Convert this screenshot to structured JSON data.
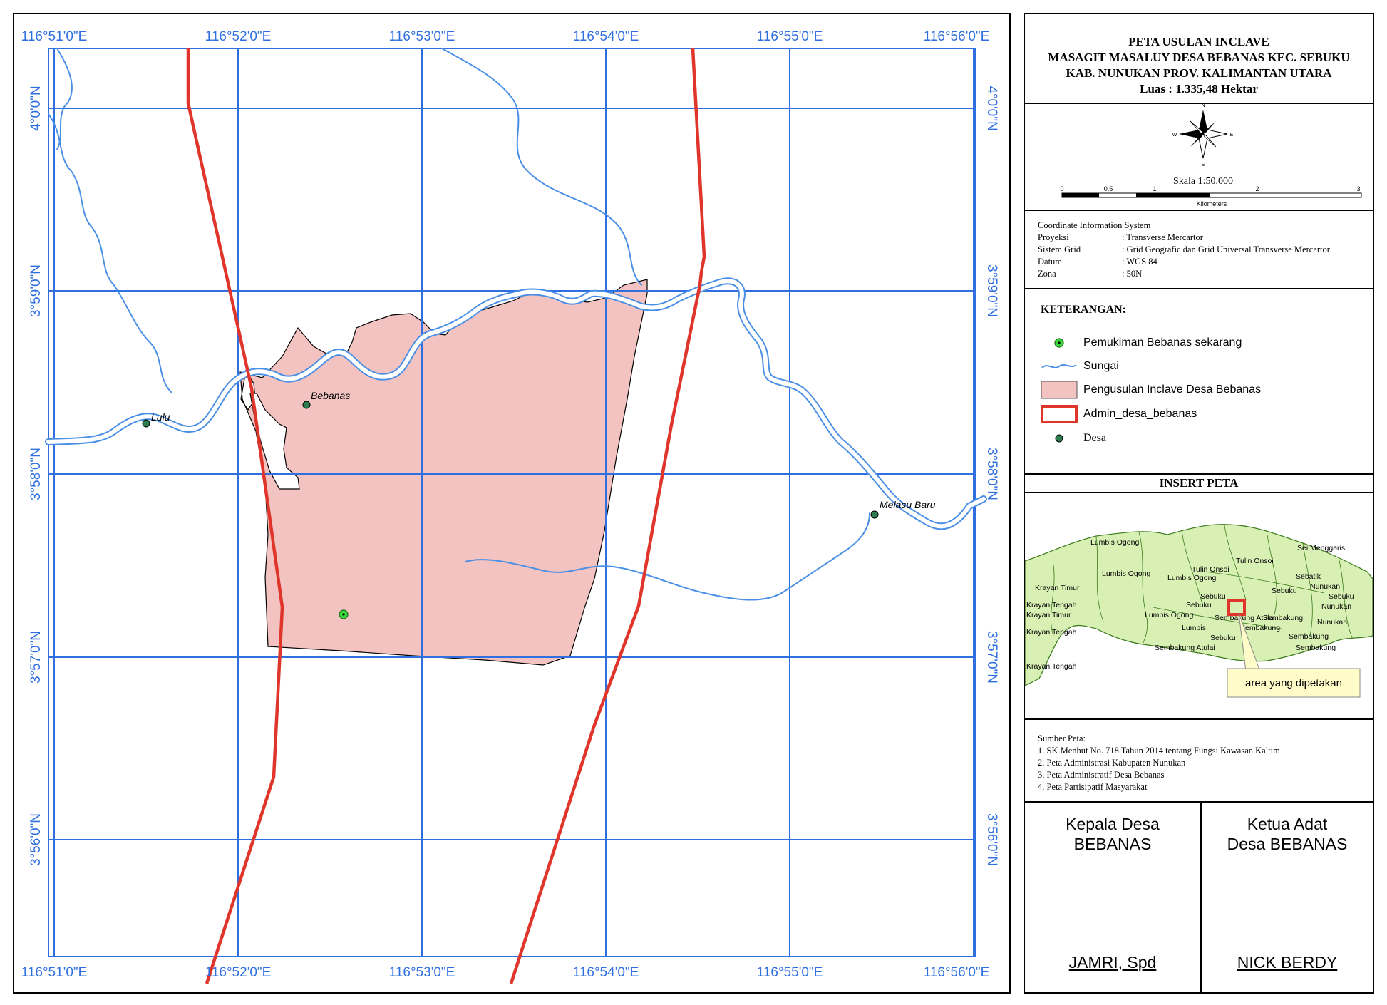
{
  "map": {
    "x_ticks": [
      "116°51'0\"E",
      "116°52'0\"E",
      "116°53'0\"E",
      "116°54'0\"E",
      "116°55'0\"E",
      "116°56'0\"E"
    ],
    "y_ticks": [
      "4°0'0\"N",
      "3°59'0\"N",
      "3°58'0\"N",
      "3°57'0\"N",
      "3°56'0\"N"
    ],
    "places": {
      "lulu": "Lulu",
      "bebanas": "Bebanas",
      "melasu": "Melasu Baru"
    },
    "colors": {
      "grid": "#2f6fe0",
      "river": "#4a8fe6",
      "boundary": "#e0352b",
      "area_fill": "#f2c3c1",
      "settlement": "#3ad63a",
      "village": "#2e7d4f"
    }
  },
  "title": {
    "line1": "PETA USULAN INCLAVE",
    "line2": "MASAGIT MASALUY DESA BEBANAS KEC. SEBUKU",
    "line3": "KAB. NUNUKAN PROV. KALIMANTAN UTARA",
    "line4": "Luas : 1.335,48 Hektar"
  },
  "compass": {
    "n": "N",
    "s": "S",
    "e": "E",
    "w": "W"
  },
  "scale": {
    "label": "Skala   1:50.000",
    "ticks": [
      "0",
      "0.5",
      "1",
      "2",
      "3"
    ],
    "unit": "Kilometers"
  },
  "cis": {
    "heading": "Coordinate Information System",
    "rows": [
      {
        "k": "Proyeksi",
        "v": ": Transverse Mercartor"
      },
      {
        "k": "Sistem Grid",
        "v": ": Grid Geografic dan Grid Universal Transverse Mercartor"
      },
      {
        "k": "Datum",
        "v": ": WGS 84"
      },
      {
        "k": "Zona",
        "v": ": 50N"
      }
    ]
  },
  "legend": {
    "heading": "KETERANGAN:",
    "items": [
      "Pemukiman Bebanas sekarang",
      "Sungai",
      "Pengusulan Inclave Desa Bebanas",
      "Admin_desa_bebanas",
      "Desa"
    ]
  },
  "insert": {
    "heading": "INSERT PETA",
    "labels": [
      "Lumbis Ogong",
      "Sei Menggaris",
      "Tulin Onsoi",
      "Lumbis Ogong",
      "Tulin Onsoi",
      "Lumbis Ogong",
      "Krayan Timur",
      "Sebatik",
      "Nunukan",
      "Sebuku",
      "Sebuku",
      "Krayan Tengah",
      "Krayan Timur",
      "Sebuku",
      "Nunukan",
      "Lumbis Ogong",
      "Sembakung Atulai",
      "Sembakung",
      "Nunukan",
      "Krayan Tengah",
      "Lumbis",
      "Sembakung",
      "Sebuku",
      "Sembakung",
      "Sembakung Atulai",
      "Sembakung",
      "Krayan Tengah",
      "Sebuku"
    ],
    "callout": "area yang dipetakan"
  },
  "sources": {
    "heading": "Sumber Peta:",
    "items": [
      "1. SK Menhut No. 718 Tahun 2014 tentang Fungsi Kawasan Kaltim",
      "2. Peta Administrasi Kabupaten Nunukan",
      "3. Peta Administratif Desa Bebanas",
      "4. Peta Partisipatif Masyarakat"
    ]
  },
  "signatures": {
    "left_title1": "Kepala Desa",
    "left_title2": "BEBANAS",
    "left_name": "JAMRI, Spd",
    "right_title1": "Ketua Adat",
    "right_title2": "Desa BEBANAS",
    "right_name": "NICK BERDY"
  }
}
